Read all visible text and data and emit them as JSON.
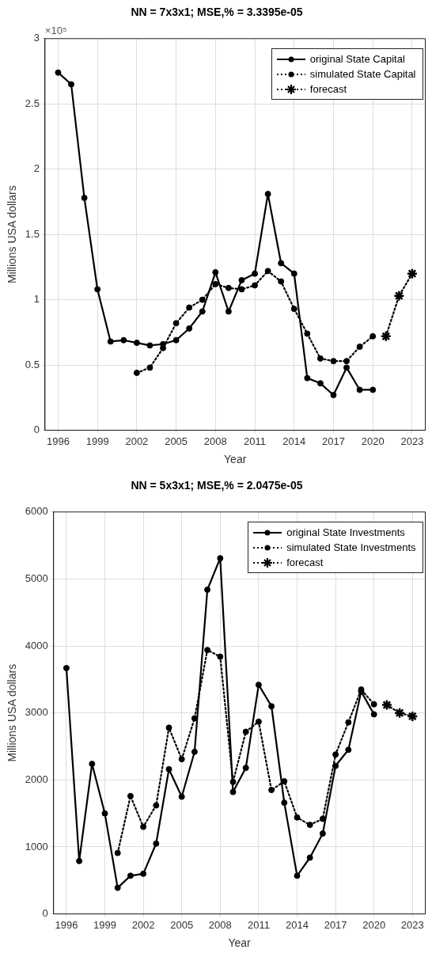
{
  "chart_data": [
    {
      "type": "line",
      "title": "NN = 7x3x1; MSE,% = 3.3395e-05",
      "xlabel": "Year",
      "ylabel": "Millions USA dollars",
      "annotations": [
        "×10⁵"
      ],
      "xlim": [
        1995,
        2024
      ],
      "xticks": [
        1996,
        1999,
        2002,
        2005,
        2008,
        2011,
        2014,
        2017,
        2020,
        2023
      ],
      "ylim": [
        0,
        3
      ],
      "yticks": [
        0,
        0.5,
        1,
        1.5,
        2,
        2.5,
        3
      ],
      "grid": true,
      "legend": "top right",
      "series": [
        {
          "name": "original State Capital",
          "color": "#000000",
          "marker": "circle",
          "line_style": "solid",
          "x": [
            1996,
            1997,
            1998,
            1999,
            2000,
            2001,
            2002,
            2003,
            2004,
            2005,
            2006,
            2007,
            2008,
            2009,
            2010,
            2011,
            2012,
            2013,
            2014,
            2015,
            2016,
            2017,
            2018,
            2019,
            2020
          ],
          "values": [
            2.74,
            2.65,
            1.78,
            1.08,
            0.68,
            0.69,
            0.67,
            0.65,
            0.66,
            0.69,
            0.78,
            0.91,
            1.21,
            0.91,
            1.15,
            1.2,
            1.81,
            1.28,
            1.2,
            0.4,
            0.36,
            0.27,
            0.48,
            0.31,
            0.31
          ]
        },
        {
          "name": "simulated State Capital",
          "color": "#000000",
          "marker": "circle",
          "line_style": "dotted",
          "x": [
            2002,
            2003,
            2004,
            2005,
            2006,
            2007,
            2008,
            2009,
            2010,
            2011,
            2012,
            2013,
            2014,
            2015,
            2016,
            2017,
            2018,
            2019,
            2020
          ],
          "values": [
            0.44,
            0.48,
            0.63,
            0.82,
            0.94,
            1.0,
            1.12,
            1.09,
            1.08,
            1.11,
            1.22,
            1.14,
            0.93,
            0.74,
            0.55,
            0.53,
            0.53,
            0.64,
            0.72
          ]
        },
        {
          "name": "forecast",
          "color": "#000000",
          "marker": "cross",
          "line_style": "dotted",
          "x": [
            2021,
            2022,
            2023
          ],
          "values": [
            0.72,
            1.03,
            1.2
          ]
        }
      ]
    },
    {
      "type": "line",
      "title": "NN = 5x3x1; MSE,% = 2.0475e-05",
      "xlabel": "Year",
      "ylabel": "Millions USA dollars",
      "xlim": [
        1995,
        2024
      ],
      "xticks": [
        1996,
        1999,
        2002,
        2005,
        2008,
        2011,
        2014,
        2017,
        2020,
        2023
      ],
      "ylim": [
        0,
        6000
      ],
      "yticks": [
        0,
        1000,
        2000,
        3000,
        4000,
        5000,
        6000
      ],
      "grid": true,
      "legend": "top right",
      "series": [
        {
          "name": "original State Investments",
          "color": "#000000",
          "marker": "circle",
          "line_style": "solid",
          "x": [
            1996,
            1997,
            1998,
            1999,
            2000,
            2001,
            2002,
            2003,
            2004,
            2005,
            2006,
            2007,
            2008,
            2009,
            2010,
            2011,
            2012,
            2013,
            2014,
            2015,
            2016,
            2017,
            2018,
            2019,
            2020
          ],
          "values": [
            3670,
            790,
            2240,
            1500,
            390,
            570,
            600,
            1050,
            2160,
            1750,
            2420,
            4840,
            5310,
            1820,
            2180,
            3420,
            3100,
            1660,
            570,
            840,
            1200,
            2210,
            2450,
            3320,
            2980
          ]
        },
        {
          "name": "simulated State Investments",
          "color": "#000000",
          "marker": "circle",
          "line_style": "dotted",
          "x": [
            2000,
            2001,
            2002,
            2003,
            2004,
            2005,
            2006,
            2007,
            2008,
            2009,
            2010,
            2011,
            2012,
            2013,
            2014,
            2015,
            2016,
            2017,
            2018,
            2019,
            2020
          ],
          "values": [
            910,
            1760,
            1300,
            1620,
            2780,
            2310,
            2920,
            3940,
            3840,
            1970,
            2720,
            2870,
            1850,
            1980,
            1440,
            1330,
            1420,
            2380,
            2860,
            3350,
            3130
          ]
        },
        {
          "name": "forecast",
          "color": "#000000",
          "marker": "cross",
          "line_style": "dotted",
          "x": [
            2021,
            2022,
            2023
          ],
          "values": [
            3120,
            3000,
            2950
          ]
        }
      ]
    }
  ]
}
